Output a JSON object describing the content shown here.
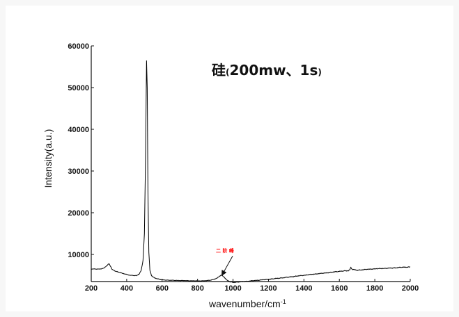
{
  "chart_data": {
    "type": "line",
    "title": {
      "main": "硅",
      "paren_open": "(",
      "params": "200mw、1s",
      "paren_close": ")"
    },
    "xlabel": {
      "text": "wavenumber/cm",
      "superscript": "-1"
    },
    "ylabel": "Intensity(a.u.)",
    "xlim": [
      200,
      2000
    ],
    "ylim": [
      3500,
      60000
    ],
    "x_ticks": [
      "200",
      "400",
      "600",
      "800",
      "1000",
      "1200",
      "1400",
      "1600",
      "1800",
      "2000"
    ],
    "y_ticks": [
      "10000",
      "20000",
      "30000",
      "40000",
      "50000",
      "60000"
    ],
    "grid": false,
    "legend": "none",
    "line_color": "#000000",
    "series": [
      {
        "x": [
          200,
          250,
          270,
          285,
          295,
          300,
          308,
          318,
          335,
          360,
          390,
          420,
          440,
          455,
          470,
          482,
          492,
          500,
          507,
          512,
          516,
          520,
          525,
          531,
          540,
          560,
          600,
          650,
          700,
          750,
          800,
          850,
          880,
          905,
          920,
          935,
          950,
          965,
          980,
          1000,
          1050,
          1100,
          1150,
          1200,
          1250,
          1300,
          1350,
          1400,
          1450,
          1500,
          1550,
          1600,
          1650,
          1665,
          1700,
          1750,
          1800,
          1850,
          1900,
          1950,
          2000
        ],
        "y": [
          6500,
          6500,
          6700,
          7200,
          7600,
          7800,
          7200,
          6400,
          6000,
          5700,
          5300,
          5000,
          4950,
          4900,
          5300,
          6200,
          8500,
          15000,
          35000,
          56500,
          50000,
          25000,
          10500,
          6200,
          4900,
          4300,
          3900,
          3800,
          3750,
          3700,
          3650,
          3700,
          3900,
          4200,
          4700,
          5000,
          4600,
          3800,
          3500,
          3300,
          3450,
          3650,
          3850,
          4050,
          4250,
          4500,
          4750,
          5000,
          5250,
          5450,
          5700,
          5950,
          6100,
          6500,
          6200,
          6400,
          6550,
          6650,
          6750,
          6900,
          7000
        ]
      }
    ],
    "annotation": {
      "text": "二 阶 峰",
      "color": "#ff0000",
      "points_to": [
        935,
        4800
      ]
    }
  }
}
